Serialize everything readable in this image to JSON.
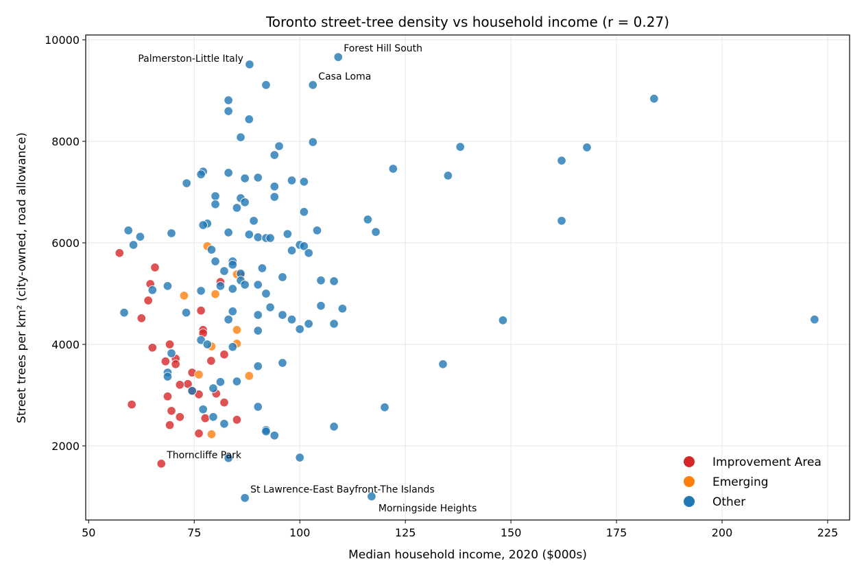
{
  "chart_data": {
    "type": "scatter",
    "title": "Toronto street-tree density vs household income (r = 0.27)",
    "xlabel": "Median household income, 2020 ($000s)",
    "ylabel": "Street trees per km² (city-owned, road allowance)",
    "xlim": [
      49.3,
      230.2
    ],
    "ylim": [
      540,
      10095
    ],
    "xticks": [
      50,
      75,
      100,
      125,
      150,
      175,
      200,
      225
    ],
    "yticks": [
      2000,
      4000,
      6000,
      8000,
      10000
    ],
    "grid": true,
    "legend_position": "bottom-right",
    "series": [
      {
        "name": "Improvement Area",
        "color": "#d62728",
        "points": [
          [
            57.3,
            5800
          ],
          [
            65.7,
            5515
          ],
          [
            64.6,
            5190
          ],
          [
            64.1,
            4865
          ],
          [
            62.5,
            4515
          ],
          [
            65.1,
            3935
          ],
          [
            69.2,
            4000
          ],
          [
            70.6,
            3720
          ],
          [
            70.6,
            3610
          ],
          [
            68.2,
            3665
          ],
          [
            74.5,
            3445
          ],
          [
            73.5,
            3220
          ],
          [
            71.6,
            3205
          ],
          [
            74.5,
            3085
          ],
          [
            76.1,
            3015
          ],
          [
            80.2,
            3030
          ],
          [
            68.7,
            2975
          ],
          [
            79.0,
            3675
          ],
          [
            82.1,
            3800
          ],
          [
            82.1,
            2855
          ],
          [
            60.2,
            2815
          ],
          [
            69.6,
            2690
          ],
          [
            71.6,
            2570
          ],
          [
            77.6,
            2545
          ],
          [
            69.2,
            2410
          ],
          [
            85.1,
            2515
          ],
          [
            76.1,
            2245
          ],
          [
            67.2,
            1650
          ],
          [
            76.6,
            4665
          ],
          [
            77.1,
            4285
          ],
          [
            77.1,
            4220
          ],
          [
            81.2,
            5230
          ],
          [
            86.0,
            5365
          ]
        ]
      },
      {
        "name": "Emerging",
        "color": "#ff7f0e",
        "points": [
          [
            78.1,
            5935
          ],
          [
            85.1,
            5380
          ],
          [
            72.6,
            4960
          ],
          [
            80.0,
            4990
          ],
          [
            85.1,
            4285
          ],
          [
            85.1,
            4015
          ],
          [
            79.1,
            3960
          ],
          [
            76.1,
            3405
          ],
          [
            88.0,
            3380
          ],
          [
            79.1,
            2230
          ]
        ]
      },
      {
        "name": "Other",
        "color": "#1f77b4",
        "points": [
          [
            88.1,
            9515
          ],
          [
            109.1,
            9660
          ],
          [
            103.1,
            9110
          ],
          [
            92.0,
            9110
          ],
          [
            83.1,
            8810
          ],
          [
            83.1,
            8595
          ],
          [
            88.0,
            8435
          ],
          [
            86.0,
            8080
          ],
          [
            95.1,
            7905
          ],
          [
            103.1,
            7985
          ],
          [
            94.0,
            7730
          ],
          [
            77.1,
            7405
          ],
          [
            76.6,
            7350
          ],
          [
            73.2,
            7175
          ],
          [
            83.1,
            7380
          ],
          [
            87.0,
            7270
          ],
          [
            90.1,
            7285
          ],
          [
            98.1,
            7230
          ],
          [
            101.0,
            7205
          ],
          [
            94.0,
            7110
          ],
          [
            80.0,
            6920
          ],
          [
            94.0,
            6905
          ],
          [
            86.0,
            6880
          ],
          [
            87.0,
            6800
          ],
          [
            80.0,
            6760
          ],
          [
            85.1,
            6690
          ],
          [
            101.0,
            6610
          ],
          [
            89.1,
            6435
          ],
          [
            78.1,
            6380
          ],
          [
            77.1,
            6350
          ],
          [
            59.4,
            6245
          ],
          [
            62.2,
            6120
          ],
          [
            69.6,
            6190
          ],
          [
            83.1,
            6205
          ],
          [
            88.0,
            6165
          ],
          [
            90.1,
            6110
          ],
          [
            92.0,
            6095
          ],
          [
            93.0,
            6095
          ],
          [
            97.1,
            6175
          ],
          [
            104.1,
            6245
          ],
          [
            60.6,
            5960
          ],
          [
            100.0,
            5960
          ],
          [
            101.0,
            5935
          ],
          [
            102.1,
            5800
          ],
          [
            98.1,
            5850
          ],
          [
            79.1,
            5865
          ],
          [
            80.0,
            5635
          ],
          [
            84.1,
            5635
          ],
          [
            84.1,
            5570
          ],
          [
            91.1,
            5500
          ],
          [
            82.1,
            5445
          ],
          [
            86.0,
            5395
          ],
          [
            86.0,
            5260
          ],
          [
            87.0,
            5175
          ],
          [
            90.1,
            5175
          ],
          [
            95.9,
            5325
          ],
          [
            105.0,
            5260
          ],
          [
            108.1,
            5245
          ],
          [
            81.2,
            5150
          ],
          [
            84.1,
            5095
          ],
          [
            68.7,
            5150
          ],
          [
            65.1,
            5070
          ],
          [
            76.6,
            5055
          ],
          [
            92.0,
            5000
          ],
          [
            58.4,
            4625
          ],
          [
            73.1,
            4625
          ],
          [
            84.1,
            4650
          ],
          [
            93.0,
            4730
          ],
          [
            105.0,
            4760
          ],
          [
            110.1,
            4705
          ],
          [
            90.1,
            4580
          ],
          [
            95.9,
            4580
          ],
          [
            83.1,
            4490
          ],
          [
            98.1,
            4490
          ],
          [
            102.1,
            4405
          ],
          [
            108.1,
            4405
          ],
          [
            90.1,
            4270
          ],
          [
            100.0,
            4300
          ],
          [
            76.6,
            4085
          ],
          [
            78.1,
            4000
          ],
          [
            84.1,
            3950
          ],
          [
            69.6,
            3825
          ],
          [
            68.7,
            3445
          ],
          [
            68.7,
            3365
          ],
          [
            90.1,
            3570
          ],
          [
            95.9,
            3635
          ],
          [
            81.2,
            3260
          ],
          [
            85.1,
            3270
          ],
          [
            74.5,
            3085
          ],
          [
            79.5,
            3135
          ],
          [
            77.1,
            2720
          ],
          [
            90.1,
            2770
          ],
          [
            79.5,
            2570
          ],
          [
            82.1,
            2435
          ],
          [
            92.0,
            2315
          ],
          [
            92.0,
            2285
          ],
          [
            94.0,
            2205
          ],
          [
            108.1,
            2380
          ],
          [
            100.0,
            1770
          ],
          [
            83.1,
            1760
          ],
          [
            87.0,
            975
          ],
          [
            117.0,
            1005
          ],
          [
            116.1,
            6460
          ],
          [
            118.0,
            6215
          ],
          [
            122.1,
            7460
          ],
          [
            135.1,
            7325
          ],
          [
            138.0,
            7890
          ],
          [
            162.0,
            7620
          ],
          [
            168.0,
            7880
          ],
          [
            162.0,
            6435
          ],
          [
            183.9,
            8840
          ],
          [
            148.1,
            4475
          ],
          [
            221.9,
            4490
          ],
          [
            133.9,
            3610
          ],
          [
            120.1,
            2760
          ]
        ]
      }
    ],
    "annotations": [
      {
        "text": "Palmerston-Little Italy",
        "x": 88.1,
        "y": 9515
      },
      {
        "text": "Forest Hill South",
        "x": 109.1,
        "y": 9660
      },
      {
        "text": "Casa Loma",
        "x": 103.1,
        "y": 9110
      },
      {
        "text": "Thorncliffe Park",
        "x": 67.2,
        "y": 1650
      },
      {
        "text": "St Lawrence-East Bayfront-The Islands",
        "x": 87.0,
        "y": 975
      },
      {
        "text": "Morningside Heights",
        "x": 117.0,
        "y": 1005
      }
    ]
  }
}
